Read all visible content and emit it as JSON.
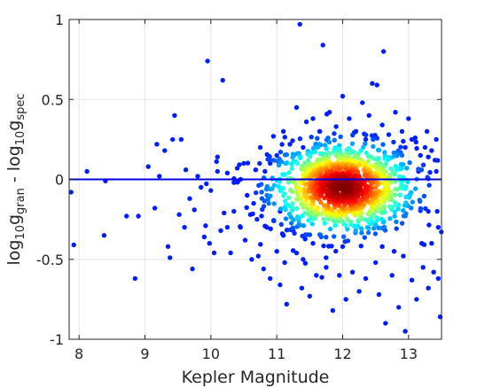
{
  "chart_data": {
    "type": "scatter",
    "title": "",
    "xlabel": "Kepler Magnitude",
    "ylabel_parts": [
      {
        "text": "log",
        "sub": false
      },
      {
        "text": "10",
        "sub": true
      },
      {
        "text": "g",
        "sub": false
      },
      {
        "text": "gran",
        "sub": true
      },
      {
        "text": " - log",
        "sub": false
      },
      {
        "text": "10",
        "sub": true
      },
      {
        "text": "g",
        "sub": false
      },
      {
        "text": "spec",
        "sub": true
      }
    ],
    "xlim": [
      7.85,
      13.5
    ],
    "ylim": [
      -1,
      1
    ],
    "xticks": [
      8,
      9,
      10,
      11,
      12,
      13
    ],
    "yticks": [
      -1,
      -0.5,
      0,
      0.5,
      1
    ],
    "ytick_labels": [
      "-1",
      "-0.5",
      "0",
      "0.5",
      "1"
    ],
    "grid": true,
    "reference_line": {
      "y": 0,
      "color": "#0000e6"
    },
    "colormap": "jet (point density)",
    "outliers": [
      [
        7.88,
        -0.08
      ],
      [
        7.92,
        -0.41
      ],
      [
        8.12,
        0.05
      ],
      [
        8.38,
        -0.35
      ],
      [
        8.4,
        -0.01
      ],
      [
        8.72,
        -0.23
      ],
      [
        8.85,
        -0.62
      ],
      [
        8.9,
        -0.23
      ],
      [
        9.05,
        0.08
      ],
      [
        9.15,
        -0.18
      ],
      [
        9.18,
        0.22
      ],
      [
        9.22,
        0.02
      ],
      [
        9.3,
        0.18
      ],
      [
        9.35,
        -0.42
      ],
      [
        9.38,
        -0.49
      ],
      [
        9.42,
        0.25
      ],
      [
        9.45,
        0.4
      ],
      [
        9.52,
        -0.22
      ],
      [
        9.55,
        0.25
      ],
      [
        9.6,
        -0.3
      ],
      [
        9.62,
        0.06
      ],
      [
        9.68,
        -0.12
      ],
      [
        9.72,
        -0.56
      ],
      [
        9.75,
        -0.19
      ],
      [
        9.8,
        0.02
      ],
      [
        9.9,
        -0.36
      ],
      [
        9.92,
        -0.29
      ],
      [
        9.95,
        0.74
      ],
      [
        10.0,
        -0.07
      ],
      [
        10.05,
        -0.46
      ],
      [
        10.1,
        0.14
      ],
      [
        10.15,
        -0.32
      ],
      [
        10.18,
        0.62
      ],
      [
        10.2,
        -0.21
      ],
      [
        10.25,
        0.04
      ],
      [
        10.3,
        -0.46
      ],
      [
        10.35,
        -0.02
      ],
      [
        10.4,
        0.07
      ],
      [
        10.45,
        -0.3
      ],
      [
        10.5,
        0.1
      ],
      [
        10.52,
        -0.38
      ],
      [
        10.6,
        -0.22
      ],
      [
        10.62,
        -0.5
      ],
      [
        10.68,
        0.06
      ],
      [
        10.72,
        -0.48
      ],
      [
        10.75,
        0.2
      ],
      [
        10.8,
        -0.56
      ],
      [
        10.82,
        0.05
      ],
      [
        10.85,
        -0.3
      ],
      [
        10.9,
        -0.62
      ],
      [
        10.95,
        0.27
      ],
      [
        11.0,
        -0.45
      ],
      [
        11.05,
        -0.66
      ],
      [
        11.1,
        0.3
      ],
      [
        11.12,
        -0.52
      ],
      [
        11.15,
        -0.78
      ],
      [
        11.2,
        0.22
      ],
      [
        11.25,
        -0.32
      ],
      [
        11.3,
        0.45
      ],
      [
        11.35,
        0.97
      ],
      [
        11.38,
        -0.68
      ],
      [
        11.4,
        -0.5
      ],
      [
        11.45,
        0.36
      ],
      [
        11.5,
        -0.73
      ],
      [
        11.55,
        0.38
      ],
      [
        11.6,
        -0.6
      ],
      [
        11.65,
        0.3
      ],
      [
        11.7,
        0.84
      ],
      [
        11.75,
        -0.55
      ],
      [
        11.8,
        0.42
      ],
      [
        11.85,
        -0.82
      ],
      [
        11.9,
        0.33
      ],
      [
        11.95,
        -0.6
      ],
      [
        12.0,
        0.52
      ],
      [
        12.05,
        -0.75
      ],
      [
        12.1,
        0.38
      ],
      [
        12.15,
        -0.58
      ],
      [
        12.2,
        0.3
      ],
      [
        12.25,
        -0.7
      ],
      [
        12.3,
        0.48
      ],
      [
        12.35,
        -0.62
      ],
      [
        12.4,
        0.4
      ],
      [
        12.45,
        0.6
      ],
      [
        12.5,
        -0.52
      ],
      [
        12.52,
        0.59
      ],
      [
        12.55,
        -0.72
      ],
      [
        12.6,
        0.34
      ],
      [
        12.62,
        0.8
      ],
      [
        12.65,
        -0.9
      ],
      [
        12.7,
        0.28
      ],
      [
        12.75,
        -0.6
      ],
      [
        12.8,
        0.42
      ],
      [
        12.85,
        -0.8
      ],
      [
        12.9,
        0.3
      ],
      [
        12.92,
        -0.48
      ],
      [
        12.95,
        -0.95
      ],
      [
        13.0,
        0.38
      ],
      [
        13.05,
        -0.63
      ],
      [
        13.1,
        0.26
      ],
      [
        13.12,
        -0.75
      ],
      [
        13.18,
        0.15
      ],
      [
        13.22,
        -0.55
      ],
      [
        13.28,
        0.3
      ],
      [
        13.3,
        -0.68
      ],
      [
        13.35,
        0.18
      ],
      [
        13.38,
        -0.58
      ],
      [
        13.42,
        0.25
      ],
      [
        13.45,
        -0.62
      ],
      [
        13.48,
        -0.86
      ],
      [
        13.4,
        0.12
      ],
      [
        13.3,
        0.14
      ],
      [
        13.25,
        0.2
      ],
      [
        13.45,
        -0.3
      ],
      [
        13.35,
        -0.4
      ],
      [
        13.2,
        -0.4
      ],
      [
        13.15,
        0.05
      ],
      [
        10.55,
        -0.1
      ],
      [
        10.65,
        -0.15
      ],
      [
        10.7,
        -0.25
      ],
      [
        10.9,
        0.1
      ],
      [
        11.0,
        0.15
      ],
      [
        11.05,
        -0.2
      ],
      [
        10.35,
        -0.2
      ],
      [
        10.25,
        -0.3
      ],
      [
        10.1,
        0.05
      ],
      [
        9.98,
        -0.4
      ],
      [
        9.85,
        -0.05
      ],
      [
        10.45,
        0.0
      ],
      [
        11.1,
        -0.35
      ],
      [
        12.78,
        -0.45
      ],
      [
        12.95,
        0.2
      ],
      [
        13.05,
        0.25
      ],
      [
        12.35,
        0.25
      ],
      [
        11.6,
        0.22
      ],
      [
        11.4,
        0.2
      ],
      [
        11.55,
        -0.4
      ],
      [
        12.0,
        -0.42
      ],
      [
        12.6,
        -0.42
      ],
      [
        13.3,
        -0.2
      ],
      [
        13.42,
        0.05
      ]
    ],
    "cluster": {
      "center_x": 12.0,
      "center_y": -0.05,
      "spread_x": 0.55,
      "spread_y": 0.14,
      "count": 1150
    }
  }
}
